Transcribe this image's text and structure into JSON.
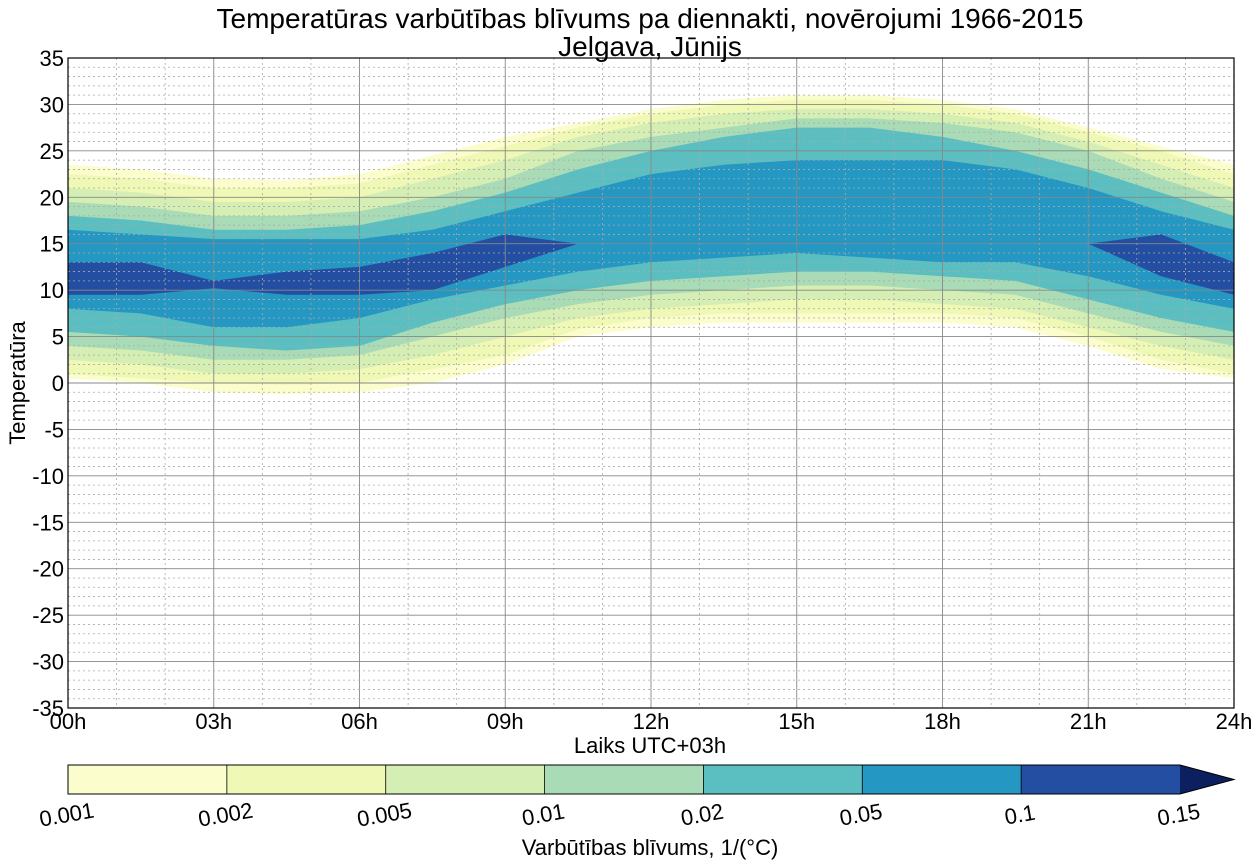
{
  "chart_data": {
    "type": "contour",
    "title": "Temperatūras varbūtības blīvums pa diennakti, novērojumi 1966-2015",
    "subtitle": "Jelgava, Jūnijs",
    "xlabel": "Laiks UTC+03h",
    "ylabel": "Temperatūra",
    "x_ticks": [
      "00h",
      "03h",
      "06h",
      "09h",
      "12h",
      "15h",
      "18h",
      "21h",
      "24h"
    ],
    "x_tick_hours": [
      0,
      3,
      6,
      9,
      12,
      15,
      18,
      21,
      24
    ],
    "xlim": [
      0,
      24
    ],
    "y_ticks": [
      "35",
      "30",
      "25",
      "20",
      "15",
      "10",
      "5",
      "0",
      "-5",
      "-10",
      "-15",
      "-20",
      "-25",
      "-30",
      "-35"
    ],
    "y_tick_values": [
      35,
      30,
      25,
      20,
      15,
      10,
      5,
      0,
      -5,
      -10,
      -15,
      -20,
      -25,
      -30,
      -35
    ],
    "ylim": [
      -35,
      35
    ],
    "grid": true,
    "colorbar": {
      "label": "Varbūtības blīvums, 1/(°C)",
      "tick_labels": [
        "0.001",
        "0.002",
        "0.005",
        "0.01",
        "0.02",
        "0.05",
        "0.1",
        "0.15"
      ],
      "levels": [
        0.001,
        0.002,
        0.005,
        0.01,
        0.02,
        0.05,
        0.1,
        0.15
      ],
      "colors": [
        "#fbfdcc",
        "#eff8b5",
        "#d5eeb3",
        "#a8dbb6",
        "#5bbec0",
        "#2497c3",
        "#234ea1",
        "#0c1f5e"
      ],
      "extend": "max"
    },
    "hours": [
      0,
      1.5,
      3,
      4.5,
      6,
      7.5,
      9,
      10.5,
      12,
      13.5,
      15,
      16.5,
      18,
      19.5,
      21,
      22.5,
      24
    ],
    "bands": [
      {
        "level": 0.001,
        "lower": [
          0.5,
          0,
          -1,
          -1.2,
          -1,
          0,
          2,
          5,
          6,
          6.5,
          6.5,
          6.5,
          6.5,
          6,
          4,
          1.5,
          0.5
        ],
        "upper": [
          23.5,
          23,
          22,
          21.8,
          22.5,
          24.5,
          26.5,
          28,
          29.5,
          30.5,
          31,
          31,
          30.5,
          29.5,
          27.5,
          25.5,
          23.5
        ]
      },
      {
        "level": 0.002,
        "lower": [
          1,
          0.5,
          0,
          -0.2,
          0,
          1.5,
          3,
          5.8,
          7,
          7.5,
          7.5,
          7.5,
          7.5,
          7,
          5,
          2.5,
          1
        ],
        "upper": [
          22.5,
          22,
          21,
          21,
          21.5,
          23.5,
          25.5,
          27.5,
          29,
          30,
          30.5,
          30.5,
          30,
          29,
          27,
          25,
          22.5
        ]
      },
      {
        "level": 0.005,
        "lower": [
          2.5,
          2,
          1,
          1,
          1.5,
          3,
          5,
          7,
          8,
          8.5,
          9,
          9,
          8.5,
          8,
          6,
          4,
          2.5
        ],
        "upper": [
          21,
          20.5,
          19.5,
          19.5,
          20,
          22,
          24,
          26.5,
          28,
          29,
          29.5,
          29.5,
          29,
          28,
          26,
          23.5,
          21
        ]
      },
      {
        "level": 0.01,
        "lower": [
          4,
          3.5,
          2.5,
          2.5,
          3,
          5,
          7,
          8.5,
          9.5,
          10,
          10.5,
          10.5,
          10,
          9.5,
          7.5,
          5.5,
          4
        ],
        "upper": [
          19.5,
          19,
          18,
          18,
          18.5,
          20,
          22,
          25,
          26.5,
          27.5,
          28.5,
          28.5,
          28,
          27,
          25,
          22,
          19.5
        ]
      },
      {
        "level": 0.02,
        "lower": [
          5.5,
          5,
          4,
          3.5,
          4,
          6.5,
          8.5,
          10,
          11,
          11.5,
          12,
          12,
          11.5,
          11,
          9,
          7,
          5.5
        ],
        "upper": [
          18,
          17.5,
          16.5,
          16.5,
          17,
          18.5,
          20.5,
          23,
          25,
          26.5,
          27.5,
          27.5,
          26.5,
          25,
          23,
          20.5,
          18
        ]
      },
      {
        "level": 0.05,
        "lower": [
          8,
          7.5,
          6,
          6,
          7,
          9,
          10.5,
          12,
          13,
          13.5,
          14,
          13.5,
          13,
          13,
          11.5,
          9.5,
          8
        ],
        "upper": [
          16.5,
          16,
          15.5,
          15.5,
          15.5,
          16.5,
          18.5,
          20.5,
          22.5,
          23.5,
          24,
          24,
          24,
          23,
          21,
          18.5,
          16.5
        ]
      },
      {
        "level": 0.1,
        "lower": [
          9.5,
          9.5,
          10.2,
          9.5,
          9.5,
          10,
          12.5,
          15,
          15,
          15,
          15,
          15,
          15,
          15,
          15,
          11.5,
          9.5
        ],
        "upper": [
          13,
          13,
          11,
          12,
          12.5,
          14,
          16,
          15,
          15,
          15,
          15,
          15,
          15,
          15,
          15,
          16,
          13
        ]
      }
    ]
  }
}
